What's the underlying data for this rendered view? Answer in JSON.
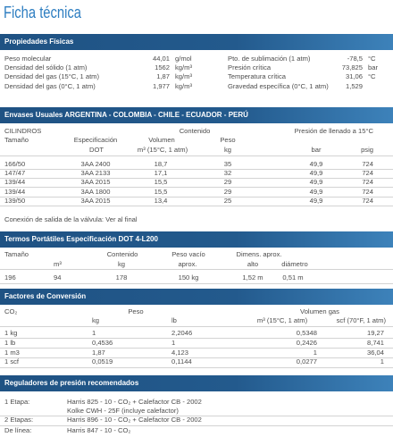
{
  "colors": {
    "title": "#2e7ec1",
    "section_bar_dark": "#1f5283",
    "section_bar_light": "#3d82ba",
    "text": "#4d4d4d",
    "rule": "#d3d3d3"
  },
  "title": "Ficha técnica",
  "propiedades": {
    "header": "Propiedades Físicas",
    "left": [
      {
        "label": "Peso molecular",
        "value": "44,01",
        "unit": "g/mol"
      },
      {
        "label": "Densidad del sólido (1 atm)",
        "value": "1562",
        "unit": "kg/m³"
      },
      {
        "label": "Densidad del gas (15°C, 1 atm)",
        "value": "1,87",
        "unit": "kg/m³"
      },
      {
        "label": "Densidad del gas (0°C, 1 atm)",
        "value": "1,977",
        "unit": "kg/m³"
      }
    ],
    "right": [
      {
        "label": "Pto. de sublimación (1 atm)",
        "value": "-78,5",
        "unit": "°C"
      },
      {
        "label": "Presión crítica",
        "value": "73,825",
        "unit": "bar"
      },
      {
        "label": "Temperatura crítica",
        "value": "31,06",
        "unit": "°C"
      },
      {
        "label": "Gravedad específica (0°C, 1 atm)",
        "value": "1,529"
      }
    ]
  },
  "envases": {
    "header": "Envases Usuales ARGENTINA - COLOMBIA - CHILE - ECUADOR - PERÚ",
    "group_cilindros": "CILINDROS",
    "group_contenido": "Contenido",
    "group_presion": "Presión de llenado a 15°C",
    "col_tamano": "Tamaño",
    "col_especificacion": "Especificación",
    "col_especificacion_unit": "DOT",
    "col_volumen": "Volumen",
    "col_volumen_unit": "m³ (15°C, 1 atm)",
    "col_peso": "Peso",
    "col_peso_unit": "kg",
    "col_bar": "bar",
    "col_psig": "psig",
    "rows": [
      {
        "tamano": "166/50",
        "especificacion": "3AA 2400",
        "volumen": "18,7",
        "peso": "35",
        "bar": "49,9",
        "psig": "724"
      },
      {
        "tamano": "147/47",
        "especificacion": "3AA 2133",
        "volumen": "17,1",
        "peso": "32",
        "bar": "49,9",
        "psig": "724"
      },
      {
        "tamano": "139/44",
        "especificacion": "3AA 2015",
        "volumen": "15,5",
        "peso": "29",
        "bar": "49,9",
        "psig": "724"
      },
      {
        "tamano": "139/44",
        "especificacion": "3AA 1800",
        "volumen": "15,5",
        "peso": "29",
        "bar": "49,9",
        "psig": "724"
      },
      {
        "tamano": "139/50",
        "especificacion": "3AA 2015",
        "volumen": "13,4",
        "peso": "25",
        "bar": "49,9",
        "psig": "724"
      }
    ],
    "note": "Conexión de salida de la válvula: Ver al final"
  },
  "termos": {
    "header": "Termos Portátiles Especificación DOT 4-L200",
    "head_top": {
      "tamano": "Tamaño",
      "contenido": "Contenido",
      "peso_vacio": "Peso vacío",
      "dimensiones": "Dimens. aprox."
    },
    "head_sub": {
      "volumen": "m³",
      "contenido": "kg",
      "peso_vacio": "aprox.",
      "alto": "alto",
      "diametro": "diámetro"
    },
    "row": {
      "tamano": "196",
      "volumen": "94",
      "contenido": "178",
      "peso_vacio": "150 kg",
      "alto": "1,52 m",
      "diametro": "0,51 m"
    }
  },
  "conversion": {
    "header": "Factores de Conversión",
    "head_top": {
      "gas": "CO₂",
      "peso": "Peso",
      "volumen": "Volumen gas"
    },
    "head_sub": {
      "kg": "kg",
      "lb": "lb",
      "m3": "m³ (15°C, 1 atm)",
      "scf": "scf (70°F, 1 atm)"
    },
    "rows": [
      {
        "unit": "1 kg",
        "kg": "1",
        "lb": "2,2046",
        "m3": "0,5348",
        "scf": "19,27"
      },
      {
        "unit": "1 lb",
        "kg": "0,4536",
        "lb": "1",
        "m3": "0,2426",
        "scf": "8,741"
      },
      {
        "unit": "1 m3",
        "kg": "1,87",
        "lb": "4,123",
        "m3": "1",
        "scf": "36,04"
      },
      {
        "unit": "1 scf",
        "kg": "0,0519",
        "lb": "0,1144",
        "m3": "0,0277",
        "scf": "1"
      }
    ]
  },
  "reguladores": {
    "header": "Reguladores de presión recomendados",
    "items": [
      {
        "label": "1 Etapa:",
        "models": [
          "Harris 825 - 10 - CO₂ + Calefactor CB - 2002",
          "Kolke CWH - 25F (incluye calefactor)"
        ]
      },
      {
        "label": "2 Etapas:",
        "models": [
          "Harris 896 - 10 - CO₂ + Calefactor CB - 2002"
        ]
      },
      {
        "label": "De línea:",
        "models": [
          "Harris 847 - 10 - CO₂"
        ]
      }
    ]
  }
}
